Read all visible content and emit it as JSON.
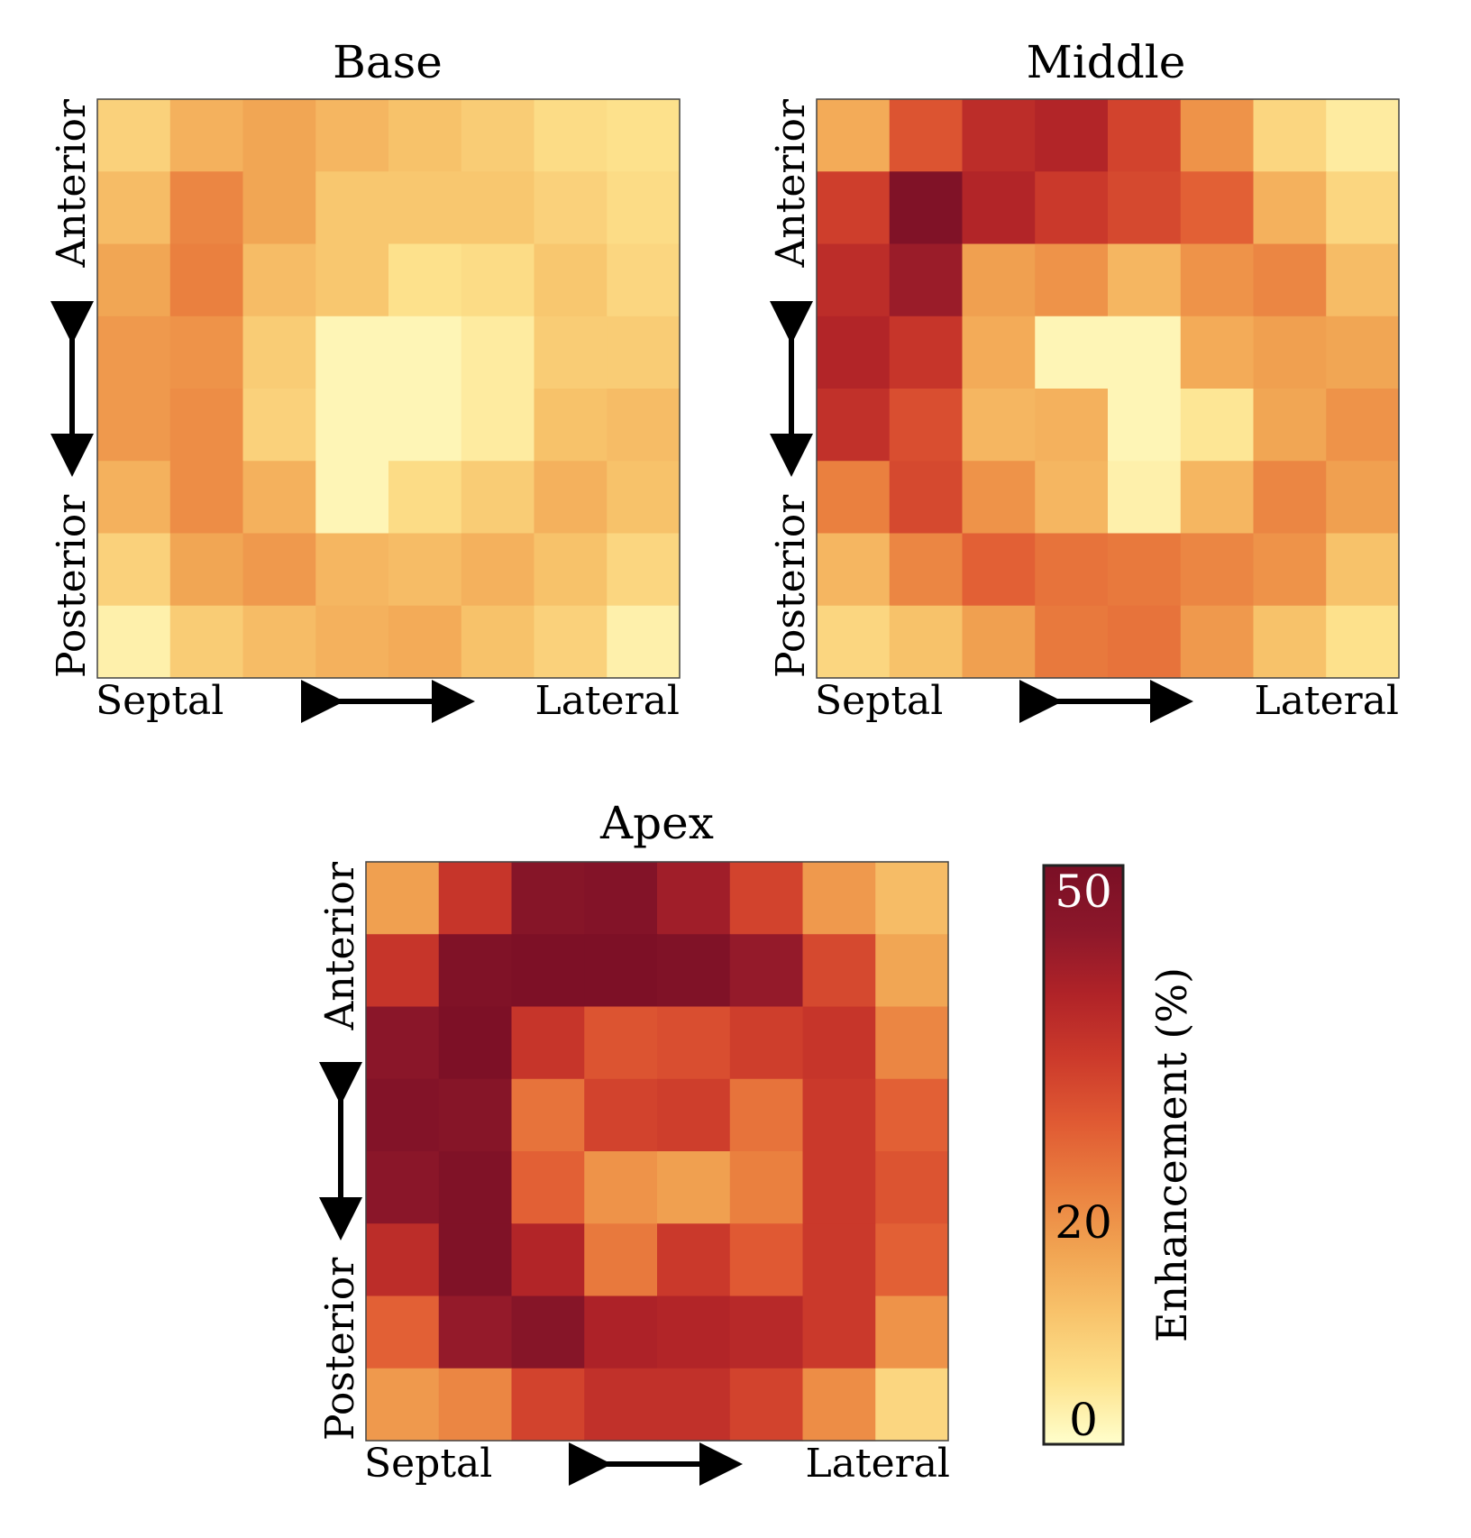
{
  "chart_data": [
    {
      "type": "heatmap",
      "title": "Base",
      "xlabel_left": "Septal",
      "xlabel_right": "Lateral",
      "ylabel_top": "Anterior",
      "ylabel_bottom": "Posterior",
      "rows": 8,
      "cols": 8,
      "values": [
        [
          9,
          15,
          17,
          14,
          12,
          10,
          7,
          6
        ],
        [
          13,
          22,
          17,
          11,
          11,
          11,
          9,
          7
        ],
        [
          17,
          23,
          13,
          11,
          6,
          7,
          11,
          8
        ],
        [
          19,
          20,
          10,
          2,
          2,
          4,
          10,
          10
        ],
        [
          19,
          21,
          9,
          2,
          2,
          4,
          12,
          13
        ],
        [
          15,
          21,
          15,
          2,
          7,
          10,
          15,
          12
        ],
        [
          9,
          17,
          19,
          14,
          13,
          15,
          12,
          8
        ],
        [
          3,
          10,
          13,
          15,
          16,
          12,
          9,
          3
        ]
      ]
    },
    {
      "type": "heatmap",
      "title": "Middle",
      "xlabel_left": "Septal",
      "xlabel_right": "Lateral",
      "ylabel_top": "Anterior",
      "ylabel_bottom": "Posterior",
      "rows": 8,
      "cols": 8,
      "values": [
        [
          16,
          30,
          38,
          40,
          33,
          20,
          8,
          4
        ],
        [
          34,
          50,
          40,
          35,
          32,
          28,
          15,
          8
        ],
        [
          38,
          44,
          18,
          20,
          14,
          20,
          22,
          13
        ],
        [
          40,
          36,
          16,
          2,
          2,
          16,
          18,
          17
        ],
        [
          37,
          31,
          14,
          15,
          2,
          5,
          17,
          20
        ],
        [
          23,
          32,
          20,
          14,
          3,
          14,
          22,
          18
        ],
        [
          14,
          22,
          28,
          25,
          24,
          22,
          20,
          12
        ],
        [
          8,
          12,
          18,
          24,
          25,
          19,
          12,
          6
        ]
      ]
    },
    {
      "type": "heatmap",
      "title": "Apex",
      "xlabel_left": "Septal",
      "xlabel_right": "Lateral",
      "ylabel_top": "Anterior",
      "ylabel_bottom": "Posterior",
      "rows": 8,
      "cols": 8,
      "values": [
        [
          18,
          36,
          48,
          49,
          43,
          33,
          19,
          13
        ],
        [
          36,
          50,
          51,
          51,
          50,
          45,
          32,
          17
        ],
        [
          47,
          51,
          36,
          30,
          31,
          34,
          36,
          22
        ],
        [
          49,
          48,
          25,
          33,
          34,
          25,
          35,
          28
        ],
        [
          47,
          50,
          28,
          20,
          18,
          23,
          35,
          30
        ],
        [
          38,
          50,
          40,
          24,
          35,
          29,
          35,
          28
        ],
        [
          28,
          45,
          48,
          41,
          40,
          39,
          35,
          20
        ],
        [
          19,
          22,
          33,
          37,
          37,
          33,
          21,
          8
        ]
      ]
    }
  ],
  "colorbar": {
    "label": "Enhancement (%)",
    "min": 0,
    "max": 52,
    "ticks": [
      0,
      20,
      50
    ],
    "stops": [
      "#ffffcc",
      "#fde28d",
      "#f8c46c",
      "#f1a452",
      "#ea7f3f",
      "#e05a33",
      "#cc3a2b",
      "#b02328",
      "#8c172a",
      "#7a0f25"
    ]
  }
}
